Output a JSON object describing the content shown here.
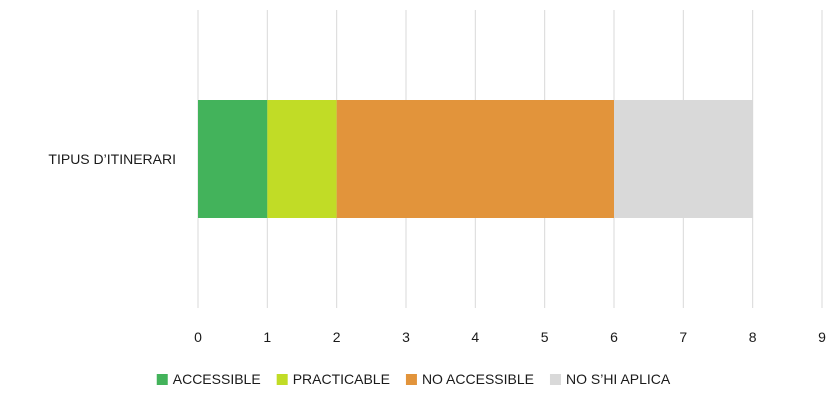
{
  "chart_data": {
    "type": "bar",
    "orientation": "horizontal",
    "stacked": true,
    "categories": [
      "TIPUS D’ITINERARI"
    ],
    "series": [
      {
        "name": "ACCESSIBLE",
        "values": [
          1
        ],
        "color": "#43b35b"
      },
      {
        "name": "PRACTICABLE",
        "values": [
          1
        ],
        "color": "#c1dc26"
      },
      {
        "name": "NO ACCESSIBLE",
        "values": [
          4
        ],
        "color": "#e2943b"
      },
      {
        "name": "NO S’HI APLICA",
        "values": [
          2
        ],
        "color": "#d9d9d9"
      }
    ],
    "xlim": [
      0,
      9
    ],
    "xticks": [
      "0",
      "1",
      "2",
      "3",
      "4",
      "5",
      "6",
      "7",
      "8",
      "9"
    ],
    "grid": "vertical",
    "legend": "bottom",
    "title": "",
    "xlabel": "",
    "ylabel": ""
  }
}
